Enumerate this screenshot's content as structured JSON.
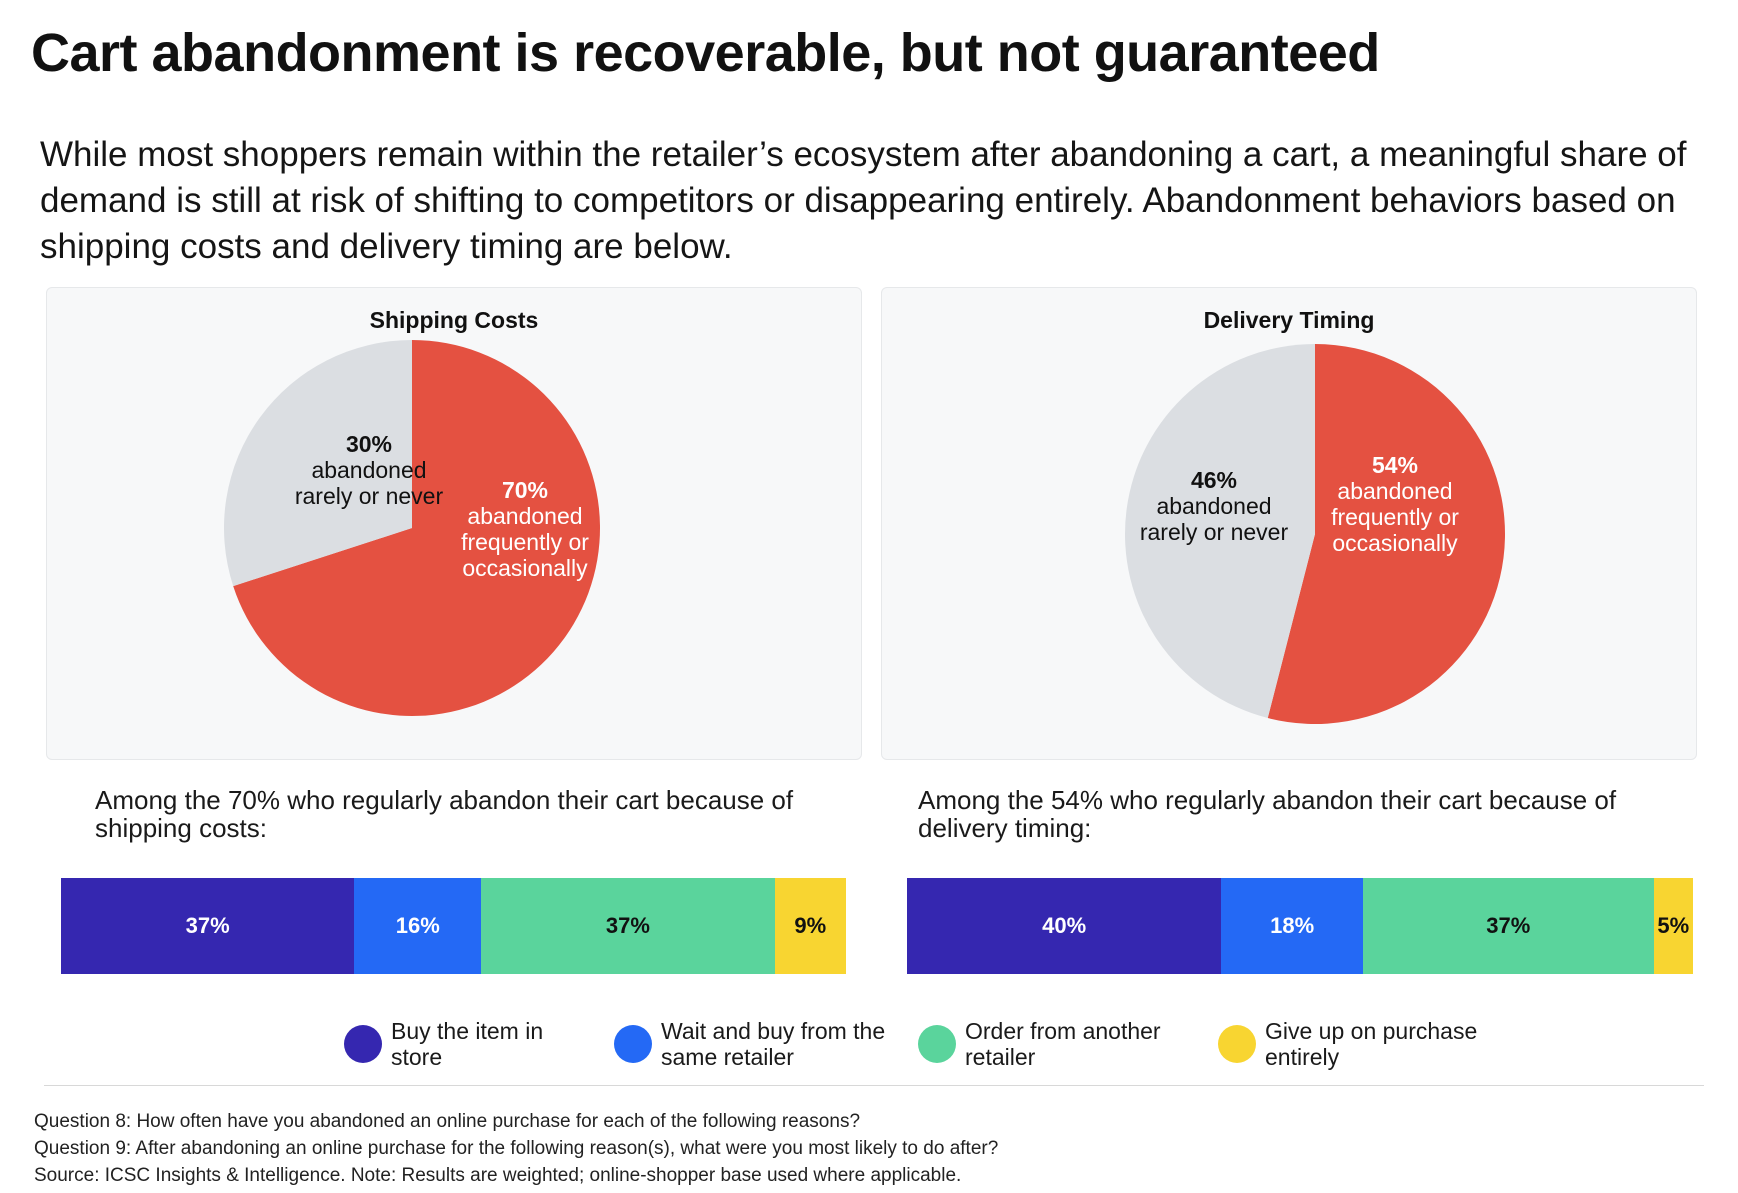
{
  "title": "Cart abandonment is recoverable, but not guaranteed",
  "subtitle": "While most shoppers remain within the retailer’s ecosystem after abandoning a cart, a meaningful share of demand is still at risk of shifting to competitors or disappearing entirely.  Abandonment behaviors based on shipping costs and delivery timing are below.",
  "colors": {
    "red": "#e45141",
    "gray": "#dbdee2",
    "navy": "#3527b0",
    "blue": "#2469f5",
    "green": "#5ad49c",
    "yellow": "#f8d531",
    "panel_bg": "#f7f8f9"
  },
  "chart_data": [
    {
      "type": "pie",
      "title": "Shipping Costs",
      "slices": [
        {
          "pct_label": "70%",
          "label": "abandoned\nfrequently or\noccasionally",
          "value": 70,
          "color": "#e45141"
        },
        {
          "pct_label": "30%",
          "label": "abandoned\nrarely or never",
          "value": 30,
          "color": "#dbdee2"
        }
      ]
    },
    {
      "type": "pie",
      "title": "Delivery Timing",
      "slices": [
        {
          "pct_label": "54%",
          "label": "abandoned\nfrequently or\noccasionally",
          "value": 54,
          "color": "#e45141"
        },
        {
          "pct_label": "46%",
          "label": "abandoned\nrarely or never",
          "value": 46,
          "color": "#dbdee2"
        }
      ]
    },
    {
      "type": "bar",
      "orientation": "horizontal-stacked",
      "title": "Among the 70% who regularly abandon their cart because of shipping costs:",
      "categories": [
        "Buy the item in store",
        "Wait and buy from the same retailer",
        "Order from another retailer",
        "Give up on purchase entirely"
      ],
      "values": [
        37,
        16,
        37,
        9
      ],
      "labels": [
        "37%",
        "16%",
        "37%",
        "9%"
      ]
    },
    {
      "type": "bar",
      "orientation": "horizontal-stacked",
      "title": "Among the 54% who regularly abandon their cart because of delivery timing:",
      "categories": [
        "Buy the item in store",
        "Wait and buy from the same retailer",
        "Order from another retailer",
        "Give up on purchase entirely"
      ],
      "values": [
        40,
        18,
        37,
        5
      ],
      "labels": [
        "40%",
        "18%",
        "37%",
        "5%"
      ]
    }
  ],
  "legend": [
    {
      "label": "Buy the item in\nstore",
      "color": "#3527b0"
    },
    {
      "label": "Wait and buy from the\nsame retailer",
      "color": "#2469f5"
    },
    {
      "label": "Order from another\nretailer",
      "color": "#5ad49c"
    },
    {
      "label": "Give up on purchase\nentirely",
      "color": "#f8d531"
    }
  ],
  "notes": {
    "q8": "Question 8: How often have you abandoned an online purchase for each of the following reasons?",
    "q9": "Question 9: After abandoning an online purchase for the following reason(s), what were you most likely to do after?",
    "source": " Source: ICSC Insights & Intelligence. Note: Results are weighted; online-shopper base used where applicable."
  }
}
